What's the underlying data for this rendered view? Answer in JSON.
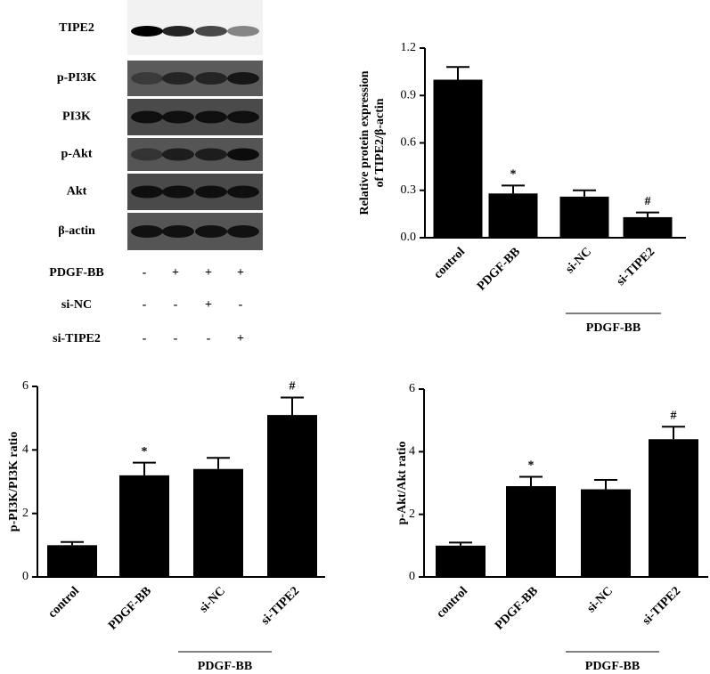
{
  "blot": {
    "rows": [
      "TIPE2",
      "p-PI3K",
      "PI3K",
      "p-Akt",
      "Akt",
      "β-actin"
    ],
    "treatments": [
      {
        "name": "PDGF-BB",
        "signs": [
          "-",
          "+",
          "+",
          "+"
        ]
      },
      {
        "name": "si-NC",
        "signs": [
          "-",
          "-",
          "+",
          "-"
        ]
      },
      {
        "name": "si-TIPE2",
        "signs": [
          "-",
          "-",
          "-",
          "+"
        ]
      }
    ]
  },
  "chart_data": [
    {
      "type": "bar",
      "y_label": [
        "Relative protein expression",
        "of TIPE2/β-actin"
      ],
      "categories": [
        "control",
        "PDGF-BB",
        "si-NC",
        "si-TIPE2"
      ],
      "values": [
        1.0,
        0.28,
        0.26,
        0.13
      ],
      "errors": [
        0.08,
        0.05,
        0.04,
        0.03
      ],
      "annotations": [
        null,
        "*",
        null,
        "#"
      ],
      "group_label": "PDGF-BB",
      "color": "#000000",
      "ylim": [
        0,
        1.2
      ],
      "yticks": [
        {
          "value": 0,
          "label": "0.0"
        },
        0.3,
        0.6,
        0.9,
        1.2
      ]
    },
    {
      "type": "bar",
      "y_label": [
        "p-PI3K/PI3K ratio"
      ],
      "categories": [
        "control",
        "PDGF-BB",
        "si-NC",
        "si-TIPE2"
      ],
      "values": [
        1.0,
        3.2,
        3.4,
        5.1
      ],
      "errors": [
        0.1,
        0.4,
        0.35,
        0.55
      ],
      "annotations": [
        null,
        "*",
        null,
        "#"
      ],
      "group_label": "PDGF-BB",
      "color": "#000000",
      "ylim": [
        0,
        6
      ],
      "yticks": [
        0,
        2,
        4,
        6
      ]
    },
    {
      "type": "bar",
      "y_label": [
        "p-Akt/Akt ratio"
      ],
      "categories": [
        "control",
        "PDGF-BB",
        "si-NC",
        "si-TIPE2"
      ],
      "values": [
        1.0,
        2.9,
        2.8,
        4.4
      ],
      "errors": [
        0.1,
        0.3,
        0.3,
        0.4
      ],
      "annotations": [
        null,
        "*",
        null,
        "#"
      ],
      "group_label": "PDGF-BB",
      "color": "#000000",
      "ylim": [
        0,
        6
      ],
      "yticks": [
        0,
        2,
        4,
        6
      ]
    }
  ]
}
